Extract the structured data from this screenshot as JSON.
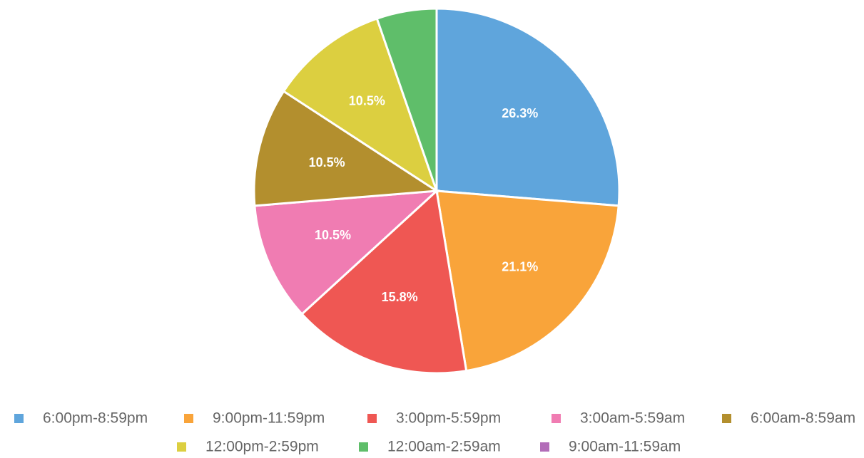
{
  "chart_data": {
    "type": "pie",
    "categories": [
      "6:00pm-8:59pm",
      "9:00pm-11:59pm",
      "3:00pm-5:59pm",
      "3:00am-5:59am",
      "6:00am-8:59am",
      "12:00pm-2:59pm",
      "12:00am-2:59am",
      "9:00am-11:59am"
    ],
    "values": [
      26.3,
      21.1,
      15.8,
      10.5,
      10.5,
      10.5,
      5.3,
      0
    ],
    "value_labels": [
      "26.3%",
      "21.1%",
      "15.8%",
      "10.5%",
      "10.5%",
      "10.5%",
      null,
      null
    ],
    "colors": [
      "#5fa5dc",
      "#f9a43a",
      "#ef5753",
      "#f07cb2",
      "#b38f2e",
      "#dccf40",
      "#5fbe6a",
      "#b26db8"
    ],
    "legend": "bottom"
  }
}
